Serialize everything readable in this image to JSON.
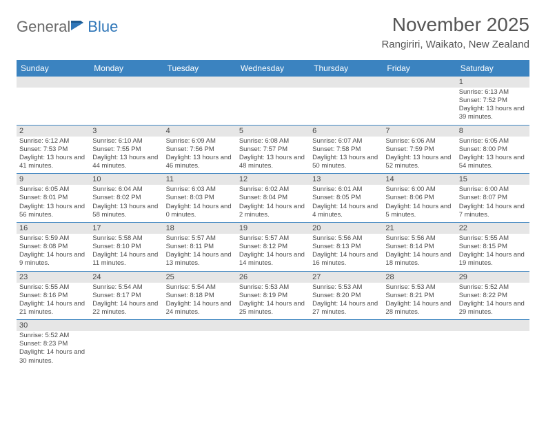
{
  "logo": {
    "part1": "General",
    "part2": "Blue"
  },
  "title": "November 2025",
  "subtitle": "Rangiriri, Waikato, New Zealand",
  "colors": {
    "header_bg": "#3b83c0",
    "header_text": "#ffffff",
    "daynum_bg": "#e6e6e6",
    "border": "#3b83c0",
    "text": "#4a4a4a",
    "title": "#555555",
    "logo_gray": "#6b6b6b",
    "logo_blue": "#2f76b8"
  },
  "dayNames": [
    "Sunday",
    "Monday",
    "Tuesday",
    "Wednesday",
    "Thursday",
    "Friday",
    "Saturday"
  ],
  "weeks": [
    [
      null,
      null,
      null,
      null,
      null,
      null,
      {
        "n": "1",
        "sr": "6:13 AM",
        "ss": "7:52 PM",
        "dl": "13 hours and 39 minutes."
      }
    ],
    [
      {
        "n": "2",
        "sr": "6:12 AM",
        "ss": "7:53 PM",
        "dl": "13 hours and 41 minutes."
      },
      {
        "n": "3",
        "sr": "6:10 AM",
        "ss": "7:55 PM",
        "dl": "13 hours and 44 minutes."
      },
      {
        "n": "4",
        "sr": "6:09 AM",
        "ss": "7:56 PM",
        "dl": "13 hours and 46 minutes."
      },
      {
        "n": "5",
        "sr": "6:08 AM",
        "ss": "7:57 PM",
        "dl": "13 hours and 48 minutes."
      },
      {
        "n": "6",
        "sr": "6:07 AM",
        "ss": "7:58 PM",
        "dl": "13 hours and 50 minutes."
      },
      {
        "n": "7",
        "sr": "6:06 AM",
        "ss": "7:59 PM",
        "dl": "13 hours and 52 minutes."
      },
      {
        "n": "8",
        "sr": "6:05 AM",
        "ss": "8:00 PM",
        "dl": "13 hours and 54 minutes."
      }
    ],
    [
      {
        "n": "9",
        "sr": "6:05 AM",
        "ss": "8:01 PM",
        "dl": "13 hours and 56 minutes."
      },
      {
        "n": "10",
        "sr": "6:04 AM",
        "ss": "8:02 PM",
        "dl": "13 hours and 58 minutes."
      },
      {
        "n": "11",
        "sr": "6:03 AM",
        "ss": "8:03 PM",
        "dl": "14 hours and 0 minutes."
      },
      {
        "n": "12",
        "sr": "6:02 AM",
        "ss": "8:04 PM",
        "dl": "14 hours and 2 minutes."
      },
      {
        "n": "13",
        "sr": "6:01 AM",
        "ss": "8:05 PM",
        "dl": "14 hours and 4 minutes."
      },
      {
        "n": "14",
        "sr": "6:00 AM",
        "ss": "8:06 PM",
        "dl": "14 hours and 5 minutes."
      },
      {
        "n": "15",
        "sr": "6:00 AM",
        "ss": "8:07 PM",
        "dl": "14 hours and 7 minutes."
      }
    ],
    [
      {
        "n": "16",
        "sr": "5:59 AM",
        "ss": "8:08 PM",
        "dl": "14 hours and 9 minutes."
      },
      {
        "n": "17",
        "sr": "5:58 AM",
        "ss": "8:10 PM",
        "dl": "14 hours and 11 minutes."
      },
      {
        "n": "18",
        "sr": "5:57 AM",
        "ss": "8:11 PM",
        "dl": "14 hours and 13 minutes."
      },
      {
        "n": "19",
        "sr": "5:57 AM",
        "ss": "8:12 PM",
        "dl": "14 hours and 14 minutes."
      },
      {
        "n": "20",
        "sr": "5:56 AM",
        "ss": "8:13 PM",
        "dl": "14 hours and 16 minutes."
      },
      {
        "n": "21",
        "sr": "5:56 AM",
        "ss": "8:14 PM",
        "dl": "14 hours and 18 minutes."
      },
      {
        "n": "22",
        "sr": "5:55 AM",
        "ss": "8:15 PM",
        "dl": "14 hours and 19 minutes."
      }
    ],
    [
      {
        "n": "23",
        "sr": "5:55 AM",
        "ss": "8:16 PM",
        "dl": "14 hours and 21 minutes."
      },
      {
        "n": "24",
        "sr": "5:54 AM",
        "ss": "8:17 PM",
        "dl": "14 hours and 22 minutes."
      },
      {
        "n": "25",
        "sr": "5:54 AM",
        "ss": "8:18 PM",
        "dl": "14 hours and 24 minutes."
      },
      {
        "n": "26",
        "sr": "5:53 AM",
        "ss": "8:19 PM",
        "dl": "14 hours and 25 minutes."
      },
      {
        "n": "27",
        "sr": "5:53 AM",
        "ss": "8:20 PM",
        "dl": "14 hours and 27 minutes."
      },
      {
        "n": "28",
        "sr": "5:53 AM",
        "ss": "8:21 PM",
        "dl": "14 hours and 28 minutes."
      },
      {
        "n": "29",
        "sr": "5:52 AM",
        "ss": "8:22 PM",
        "dl": "14 hours and 29 minutes."
      }
    ],
    [
      {
        "n": "30",
        "sr": "5:52 AM",
        "ss": "8:23 PM",
        "dl": "14 hours and 30 minutes."
      },
      null,
      null,
      null,
      null,
      null,
      null
    ]
  ],
  "labels": {
    "sunrise": "Sunrise:",
    "sunset": "Sunset:",
    "daylight": "Daylight:"
  }
}
